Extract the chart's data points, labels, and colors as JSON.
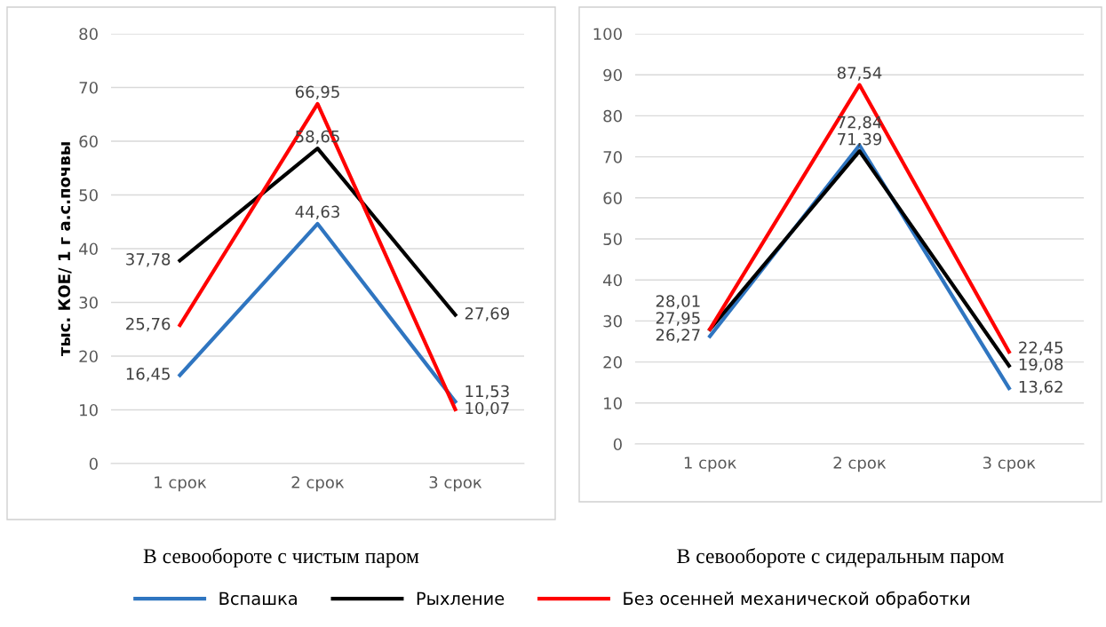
{
  "chart_data": [
    {
      "type": "line",
      "ylabel": "тыс. КОЕ/ 1 г а.с.почвы",
      "xlabel": "В севообороте с чистым паром",
      "categories": [
        "1 срок",
        "2 срок",
        "3 срок"
      ],
      "ylim": [
        0,
        80
      ],
      "yticks": [
        0,
        10,
        20,
        30,
        40,
        50,
        60,
        70,
        80
      ],
      "grid": "y",
      "legend": "bottom",
      "marker": "none",
      "line_style": "solid",
      "series": [
        {
          "name": "Вспашка",
          "color": "#2f75c0",
          "values": [
            16.45,
            44.63,
            11.53
          ],
          "value_labels": [
            "16,45",
            "44,63",
            "11,53"
          ]
        },
        {
          "name": "Рыхление",
          "color": "#000000",
          "values": [
            37.78,
            58.65,
            27.69
          ],
          "value_labels": [
            "37,78",
            "58,65",
            "27,69"
          ]
        },
        {
          "name": "Без осенней механической обработки",
          "color": "#ff0000",
          "values": [
            25.76,
            66.95,
            10.07
          ],
          "value_labels": [
            "25,76",
            "66,95",
            "10,07"
          ]
        }
      ]
    },
    {
      "type": "line",
      "xlabel": "В севообороте с сидеральным паром",
      "categories": [
        "1 срок",
        "2 срок",
        "3 срок"
      ],
      "ylim": [
        0,
        100
      ],
      "yticks": [
        0,
        10,
        20,
        30,
        40,
        50,
        60,
        70,
        80,
        90,
        100
      ],
      "grid": "y",
      "legend": "bottom",
      "marker": "none",
      "line_style": "solid",
      "series": [
        {
          "name": "Вспашка",
          "color": "#2f75c0",
          "values": [
            26.27,
            72.84,
            13.62
          ],
          "value_labels": [
            "26,27",
            "72,84",
            "13,62"
          ]
        },
        {
          "name": "Рыхление",
          "color": "#000000",
          "values": [
            27.95,
            71.39,
            19.08
          ],
          "value_labels": [
            "27,95",
            "71,39",
            "19,08"
          ]
        },
        {
          "name": "Без осенней механической обработки",
          "color": "#ff0000",
          "values": [
            28.01,
            87.54,
            22.45
          ],
          "value_labels": [
            "28,01",
            "87,54",
            "22,45"
          ]
        }
      ]
    }
  ]
}
